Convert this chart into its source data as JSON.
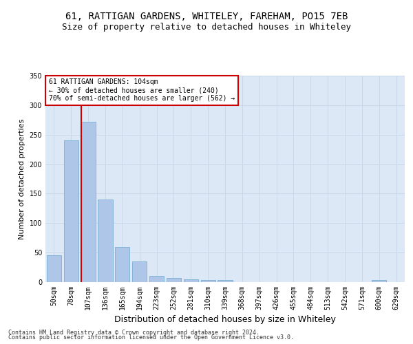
{
  "title1": "61, RATTIGAN GARDENS, WHITELEY, FAREHAM, PO15 7EB",
  "title2": "Size of property relative to detached houses in Whiteley",
  "xlabel": "Distribution of detached houses by size in Whiteley",
  "ylabel": "Number of detached properties",
  "categories": [
    "50sqm",
    "78sqm",
    "107sqm",
    "136sqm",
    "165sqm",
    "194sqm",
    "223sqm",
    "252sqm",
    "281sqm",
    "310sqm",
    "339sqm",
    "368sqm",
    "397sqm",
    "426sqm",
    "455sqm",
    "484sqm",
    "513sqm",
    "542sqm",
    "571sqm",
    "600sqm",
    "629sqm"
  ],
  "values": [
    45,
    240,
    272,
    140,
    60,
    35,
    11,
    7,
    5,
    3,
    3,
    0,
    0,
    0,
    0,
    0,
    0,
    0,
    0,
    3,
    0
  ],
  "bar_color": "#aec6e8",
  "bar_edge_color": "#7aafd4",
  "vline_color": "#cc0000",
  "vline_x": 1.575,
  "annotation_line1": "61 RATTIGAN GARDENS: 104sqm",
  "annotation_line2": "← 30% of detached houses are smaller (240)",
  "annotation_line3": "70% of semi-detached houses are larger (562) →",
  "annotation_box_facecolor": "#ffffff",
  "annotation_box_edgecolor": "#cc0000",
  "ylim": [
    0,
    350
  ],
  "yticks": [
    0,
    50,
    100,
    150,
    200,
    250,
    300,
    350
  ],
  "grid_color": "#c8d8e8",
  "plot_bg_color": "#dce8f5",
  "title_fontsize": 10,
  "subtitle_fontsize": 9,
  "tick_fontsize": 7,
  "ylabel_fontsize": 8,
  "xlabel_fontsize": 9,
  "footer1": "Contains HM Land Registry data © Crown copyright and database right 2024.",
  "footer2": "Contains public sector information licensed under the Open Government Licence v3.0.",
  "footer_fontsize": 6
}
